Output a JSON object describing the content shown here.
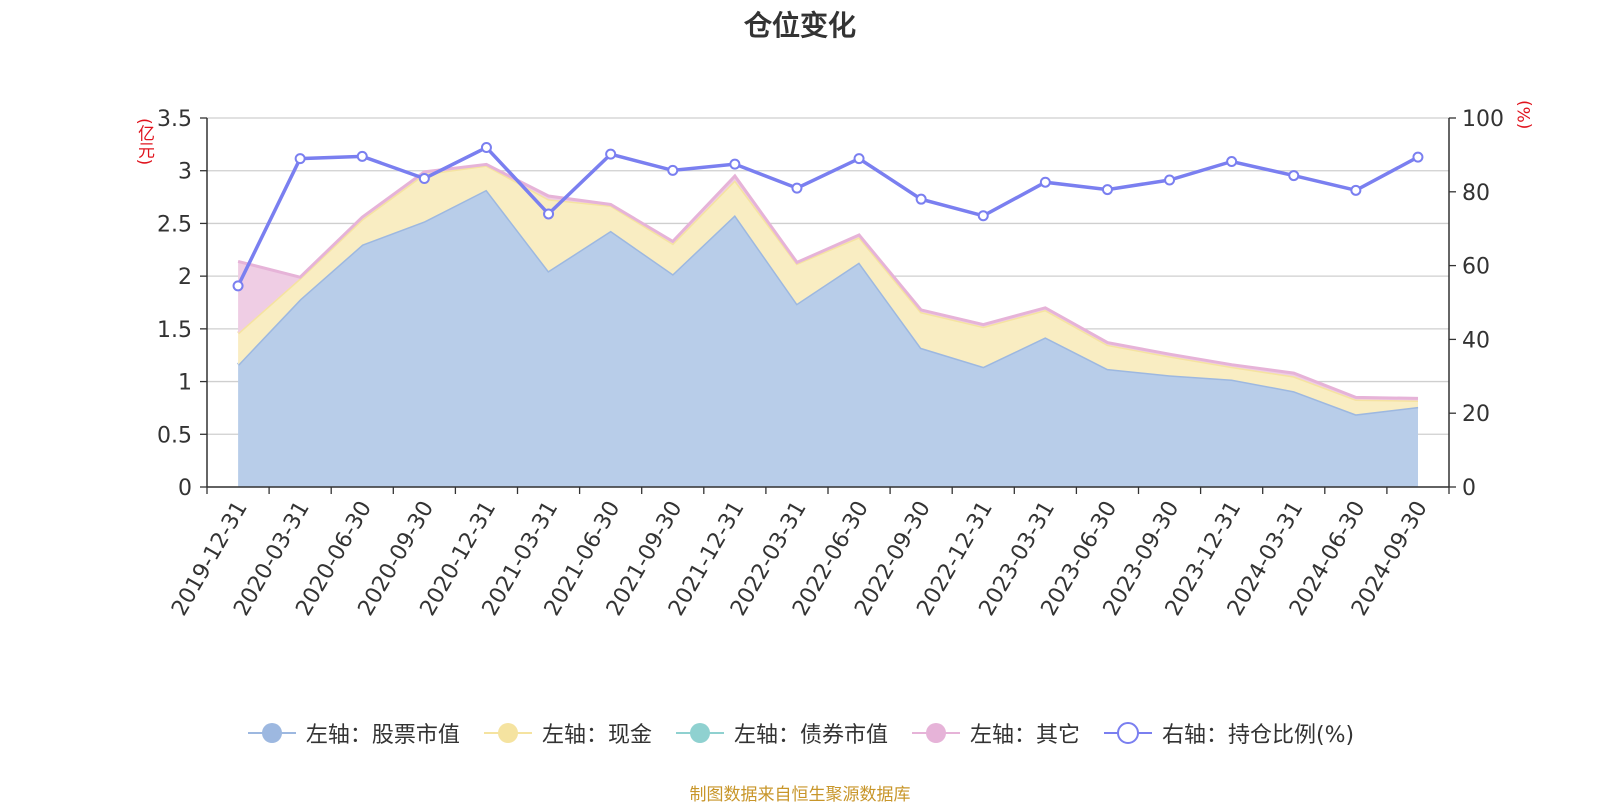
{
  "chart_data": {
    "type": "area",
    "title": "仓位变化",
    "unit_left": "(亿元)",
    "unit_right": "(%)",
    "x": [
      "2019-12-31",
      "2020-03-31",
      "2020-06-30",
      "2020-09-30",
      "2020-12-31",
      "2021-03-31",
      "2021-06-30",
      "2021-09-30",
      "2021-12-31",
      "2022-03-31",
      "2022-06-30",
      "2022-09-30",
      "2022-12-31",
      "2023-03-31",
      "2023-06-30",
      "2023-09-30",
      "2023-12-31",
      "2024-03-31",
      "2024-06-30",
      "2024-09-30"
    ],
    "left_axis": {
      "ylim": [
        0,
        3.5
      ],
      "ticks": [
        "0",
        "0.5",
        "1",
        "1.5",
        "2",
        "2.5",
        "3",
        "3.5"
      ]
    },
    "right_axis": {
      "ylim": [
        0,
        100
      ],
      "ticks": [
        "0",
        "20",
        "40",
        "60",
        "80",
        "100"
      ]
    },
    "series": [
      {
        "name": "左轴：股票市值",
        "axis": "left",
        "stack": true,
        "color": "#9db8e0",
        "fill": "#b8cde9",
        "values": [
          1.16,
          1.78,
          2.3,
          2.52,
          2.82,
          2.05,
          2.43,
          2.02,
          2.58,
          1.74,
          2.13,
          1.32,
          1.14,
          1.42,
          1.12,
          1.06,
          1.02,
          0.91,
          0.69,
          0.76
        ]
      },
      {
        "name": "左轴：现金",
        "axis": "left",
        "stack": true,
        "color": "#f5e3a0",
        "fill": "#f9edc2",
        "values": [
          0.3,
          0.2,
          0.24,
          0.45,
          0.23,
          0.68,
          0.24,
          0.29,
          0.33,
          0.38,
          0.24,
          0.34,
          0.38,
          0.26,
          0.23,
          0.18,
          0.12,
          0.14,
          0.14,
          0.06
        ]
      },
      {
        "name": "左轴：债券市值",
        "axis": "left",
        "stack": true,
        "color": "#8fd1d0",
        "fill": "#b9e3e2",
        "values": [
          0,
          0,
          0,
          0,
          0,
          0,
          0,
          0,
          0,
          0,
          0,
          0,
          0,
          0,
          0,
          0,
          0,
          0,
          0,
          0
        ]
      },
      {
        "name": "左轴：其它",
        "axis": "left",
        "stack": true,
        "color": "#e6b3d8",
        "fill": "#efcde4",
        "values": [
          0.68,
          0.01,
          0.02,
          0.02,
          0.01,
          0.03,
          0.01,
          0.02,
          0.04,
          0.01,
          0.02,
          0.02,
          0.02,
          0.02,
          0.02,
          0.02,
          0.02,
          0.03,
          0.02,
          0.02
        ]
      },
      {
        "name": "右轴：持仓比例(%)",
        "axis": "right",
        "stack": false,
        "color": "#7a7ff0",
        "values": [
          54.5,
          89,
          89.6,
          83.6,
          92,
          74,
          90.2,
          85.8,
          87.5,
          81,
          89,
          78,
          73.5,
          82.6,
          80.6,
          83.2,
          88.2,
          84.4,
          80.4,
          89.4
        ]
      }
    ]
  },
  "source_text": "制图数据来自恒生聚源数据库"
}
